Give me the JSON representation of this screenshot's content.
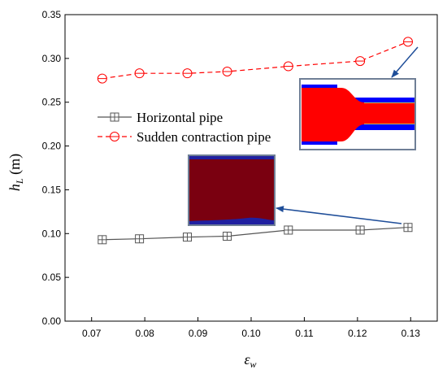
{
  "chart_data": {
    "type": "line",
    "title": "",
    "xlabel_main": "ε",
    "xlabel_sub": "w",
    "ylabel_main": "h",
    "ylabel_sub": "L",
    "ylabel_unit": " (m)",
    "xlim": [
      0.065,
      0.135
    ],
    "ylim": [
      0.0,
      0.35
    ],
    "x_ticks": [
      "0.07",
      "0.08",
      "0.09",
      "0.10",
      "0.11",
      "0.12",
      "0.13"
    ],
    "x_tick_values": [
      0.07,
      0.08,
      0.09,
      0.1,
      0.11,
      0.12,
      0.13
    ],
    "y_ticks": [
      "0.00",
      "0.05",
      "0.10",
      "0.15",
      "0.20",
      "0.25",
      "0.30",
      "0.35"
    ],
    "y_tick_values": [
      0.0,
      0.05,
      0.1,
      0.15,
      0.2,
      0.25,
      0.3,
      0.35
    ],
    "grid": false,
    "legend_position": "center-left",
    "series": [
      {
        "name": "Horizontal pipe",
        "color": "#555555",
        "line_style": "solid",
        "marker": "square-plus",
        "x": [
          0.072,
          0.079,
          0.088,
          0.0955,
          0.107,
          0.1205,
          0.1295
        ],
        "y": [
          0.093,
          0.094,
          0.096,
          0.097,
          0.104,
          0.104,
          0.107
        ]
      },
      {
        "name": "Sudden contraction pipe",
        "color": "#ff0000",
        "line_style": "dashed",
        "marker": "circle-minus",
        "x": [
          0.072,
          0.079,
          0.088,
          0.0955,
          0.107,
          0.1205,
          0.1295
        ],
        "y": [
          0.277,
          0.283,
          0.283,
          0.285,
          0.291,
          0.297,
          0.319
        ]
      }
    ],
    "insets": [
      {
        "name": "contraction-flow-inset",
        "colors": {
          "fluid": "#ff0000",
          "wall": "#0000ff",
          "background": "#ffffff",
          "border": "#6f7f96"
        }
      },
      {
        "name": "horizontal-flow-inset",
        "colors": {
          "fluid": "#7a0010",
          "wall": "#2020a0",
          "border": "#6f7f96"
        }
      }
    ]
  }
}
